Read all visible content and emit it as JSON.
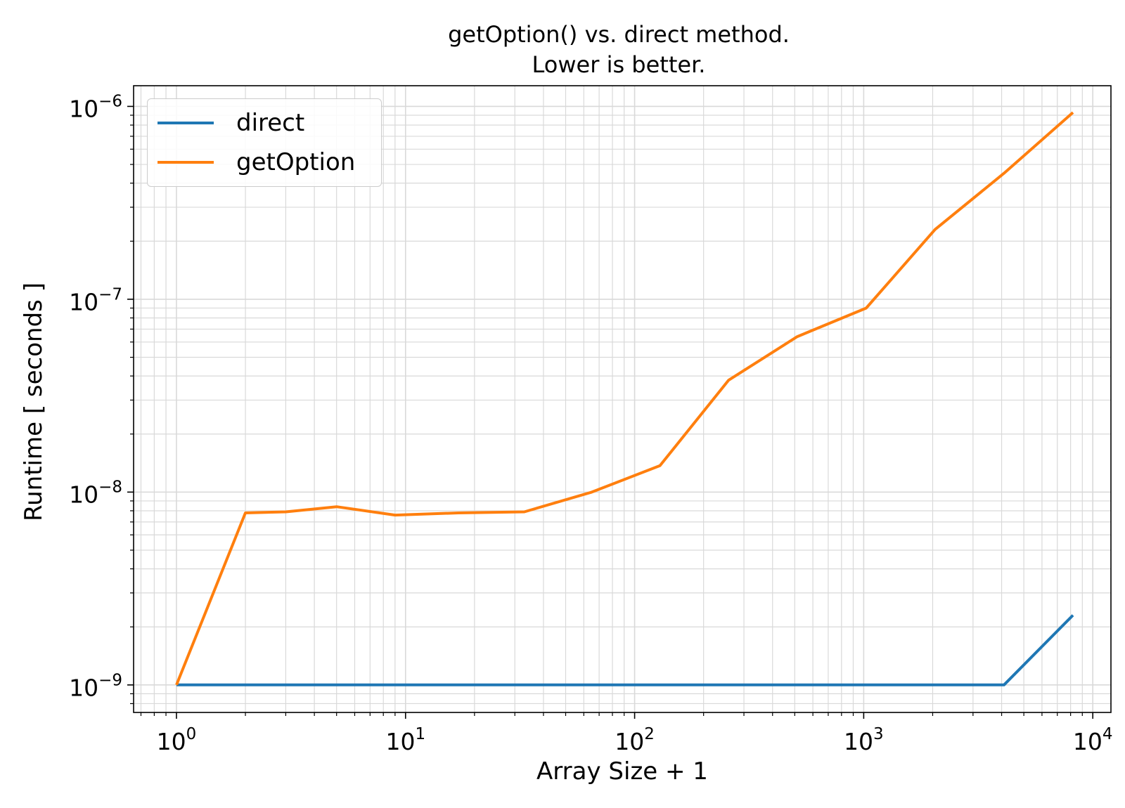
{
  "chart_data": {
    "type": "line",
    "title": [
      "getOption() vs. direct method.",
      "Lower is better."
    ],
    "xlabel": "Array Size + 1",
    "ylabel": "Runtime [ seconds ]",
    "xscale": "log",
    "yscale": "log",
    "xlim": [
      0.65,
      12000
    ],
    "ylim": [
      7.2e-10,
      1.28e-06
    ],
    "grid": "major and minor",
    "legend_position": "top-left",
    "x_ticks": [
      {
        "value": 1,
        "label_base": "10",
        "label_exp": "0"
      },
      {
        "value": 10,
        "label_base": "10",
        "label_exp": "1"
      },
      {
        "value": 100,
        "label_base": "10",
        "label_exp": "2"
      },
      {
        "value": 1000,
        "label_base": "10",
        "label_exp": "3"
      },
      {
        "value": 10000,
        "label_base": "10",
        "label_exp": "4"
      }
    ],
    "y_ticks": [
      {
        "value": 1e-09,
        "label_base": "10",
        "label_exp": "−9"
      },
      {
        "value": 1e-08,
        "label_base": "10",
        "label_exp": "−8"
      },
      {
        "value": 1e-07,
        "label_base": "10",
        "label_exp": "−7"
      },
      {
        "value": 1e-06,
        "label_base": "10",
        "label_exp": "−6"
      }
    ],
    "series": [
      {
        "name": "direct",
        "color": "#1f77b4",
        "x": [
          1,
          2,
          3,
          5,
          9,
          17,
          33,
          65,
          129,
          257,
          513,
          1025,
          2049,
          4097,
          8193
        ],
        "y": [
          1e-09,
          1e-09,
          1e-09,
          1e-09,
          1e-09,
          1e-09,
          1e-09,
          1e-09,
          1e-09,
          1e-09,
          1e-09,
          1e-09,
          1e-09,
          1e-09,
          2.3e-09
        ]
      },
      {
        "name": "getOption",
        "color": "#ff7f0e",
        "x": [
          1,
          2,
          3,
          5,
          9,
          17,
          33,
          65,
          129,
          257,
          513,
          1025,
          2049,
          4097,
          8193
        ],
        "y": [
          1e-09,
          7.8e-09,
          7.9e-09,
          8.4e-09,
          7.6e-09,
          7.8e-09,
          7.9e-09,
          1e-08,
          1.37e-08,
          3.8e-08,
          6.4e-08,
          9e-08,
          2.3e-07,
          4.5e-07,
          9.3e-07
        ]
      }
    ]
  }
}
